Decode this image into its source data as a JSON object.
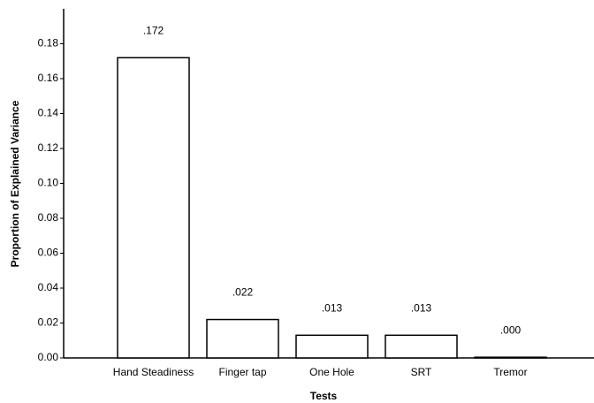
{
  "chart_data": {
    "type": "bar",
    "x_label": "Tests",
    "y_label": "Proportion of Explained Variance",
    "categories": [
      "Hand Steadiness",
      "Finger tap",
      "One Hole",
      "SRT",
      "Tremor"
    ],
    "values": [
      0.172,
      0.022,
      0.013,
      0.013,
      0.0004
    ],
    "value_labels": [
      ".172",
      ".022",
      ".013",
      ".013",
      ".000"
    ],
    "color": "#ffffff",
    "ylim": [
      0,
      0.2
    ],
    "yticks": [
      {
        "value": 0,
        "label": "0.00"
      },
      {
        "value": 0.02,
        "label": "0.02"
      },
      {
        "value": 0.04,
        "label": "0.04"
      },
      {
        "value": 0.06,
        "label": "0.06"
      },
      {
        "value": 0.08,
        "label": "0.08"
      },
      {
        "value": 0.1,
        "label": "0.10"
      },
      {
        "value": 0.12,
        "label": "0.12"
      },
      {
        "value": 0.14,
        "label": "0.14"
      },
      {
        "value": 0.16,
        "label": "0.16"
      },
      {
        "value": 0.18,
        "label": "0.18"
      }
    ],
    "grid": false
  }
}
